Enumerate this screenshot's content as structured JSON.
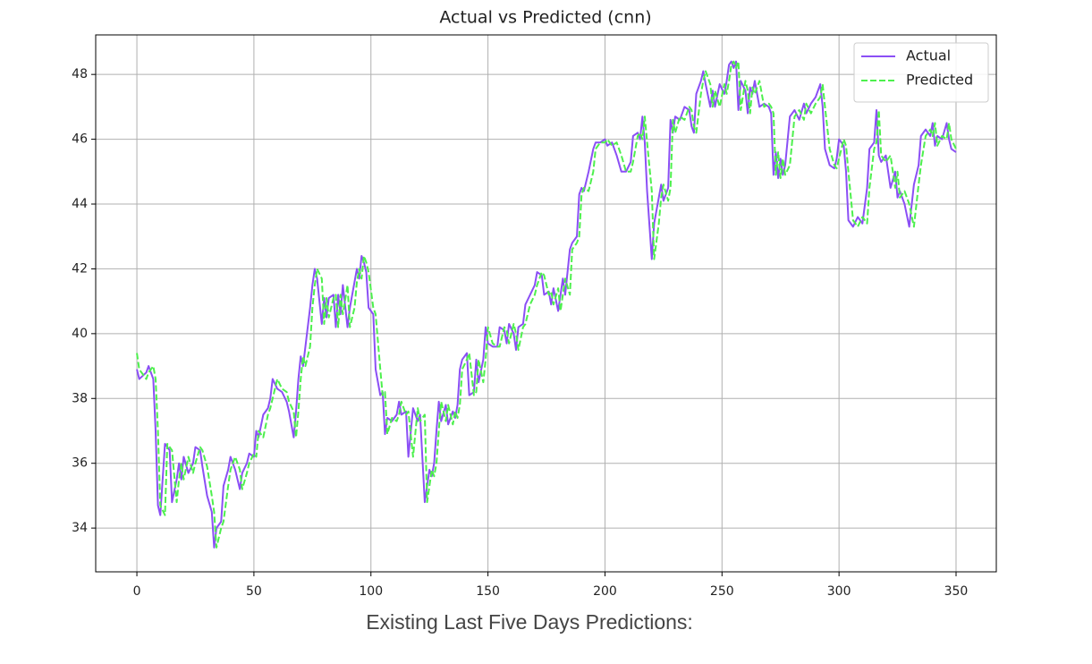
{
  "chart_data": {
    "type": "line",
    "title": "Actual vs Predicted (cnn)",
    "caption": "Existing Last Five Days Predictions:",
    "x": [
      0,
      1,
      4,
      5,
      7,
      8,
      9,
      10,
      12,
      13,
      14,
      15,
      17,
      18,
      19,
      20,
      22,
      24,
      25,
      27,
      28,
      30,
      32,
      33,
      34,
      36,
      37,
      39,
      40,
      42,
      44,
      45,
      47,
      48,
      50,
      51,
      52,
      54,
      56,
      57,
      58,
      60,
      62,
      64,
      65,
      67,
      68,
      69,
      70,
      71,
      72,
      74,
      75,
      76,
      77,
      79,
      80,
      81,
      82,
      84,
      85,
      86,
      87,
      88,
      90,
      91,
      93,
      94,
      95,
      96,
      97,
      98,
      99,
      101,
      102,
      104,
      105,
      106,
      107,
      109,
      111,
      112,
      113,
      115,
      116,
      118,
      120,
      121,
      123,
      124,
      125,
      126,
      127,
      128,
      129,
      130,
      132,
      133,
      135,
      136,
      137,
      138,
      139,
      141,
      142,
      144,
      145,
      146,
      148,
      149,
      150,
      152,
      154,
      155,
      157,
      158,
      159,
      161,
      162,
      163,
      165,
      166,
      168,
      170,
      171,
      173,
      174,
      176,
      177,
      178,
      180,
      181,
      182,
      183,
      185,
      186,
      188,
      189,
      190,
      191,
      193,
      195,
      196,
      198,
      200,
      201,
      203,
      205,
      207,
      209,
      211,
      212,
      214,
      215,
      216,
      217,
      218,
      220,
      221,
      223,
      224,
      225,
      227,
      228,
      229,
      230,
      232,
      234,
      236,
      237,
      238,
      239,
      241,
      242,
      243,
      245,
      246,
      247,
      249,
      251,
      252,
      253,
      254,
      255,
      256,
      257,
      258,
      260,
      261,
      262,
      263,
      264,
      266,
      268,
      270,
      271,
      272,
      273,
      274,
      275,
      276,
      277,
      279,
      281,
      283,
      285,
      286,
      288,
      290,
      292,
      293,
      294,
      296,
      298,
      299,
      300,
      302,
      303,
      304,
      306,
      308,
      310,
      312,
      313,
      315,
      316,
      317,
      318,
      320,
      322,
      324,
      325,
      326,
      328,
      330,
      332,
      334,
      335,
      337,
      339,
      340,
      341,
      342,
      344,
      346,
      347,
      348,
      350
    ],
    "series": [
      {
        "name": "Actual",
        "color": "#8b4ff5",
        "dashed": false,
        "values": [
          38.9,
          38.6,
          38.8,
          39.0,
          38.6,
          37.0,
          34.7,
          34.4,
          36.6,
          36.5,
          36.4,
          34.8,
          35.5,
          36.0,
          35.5,
          36.2,
          35.7,
          36.0,
          36.5,
          36.4,
          35.9,
          35.0,
          34.5,
          33.4,
          34.0,
          34.2,
          35.3,
          35.8,
          36.2,
          35.8,
          35.2,
          35.7,
          36.0,
          36.3,
          36.2,
          37.0,
          36.8,
          37.5,
          37.7,
          38.0,
          38.6,
          38.3,
          38.2,
          37.9,
          37.6,
          36.8,
          37.6,
          38.6,
          39.3,
          39.0,
          39.6,
          40.8,
          41.5,
          42.0,
          41.7,
          40.3,
          41.1,
          40.5,
          41.1,
          41.2,
          40.2,
          41.2,
          40.6,
          41.5,
          40.2,
          40.8,
          41.6,
          42.0,
          41.7,
          42.4,
          42.2,
          41.9,
          40.8,
          40.6,
          38.9,
          38.1,
          38.2,
          36.9,
          37.4,
          37.3,
          37.5,
          37.9,
          37.5,
          37.6,
          36.2,
          37.7,
          37.3,
          37.5,
          34.8,
          35.3,
          35.8,
          35.6,
          36.0,
          37.0,
          37.9,
          37.3,
          37.8,
          37.2,
          37.6,
          37.4,
          37.8,
          38.9,
          39.2,
          39.4,
          38.1,
          38.2,
          39.2,
          38.5,
          39.2,
          40.2,
          39.7,
          39.6,
          39.6,
          40.2,
          40.1,
          39.7,
          40.3,
          40.0,
          39.5,
          40.2,
          40.3,
          40.9,
          41.2,
          41.5,
          41.9,
          41.8,
          41.2,
          41.3,
          40.9,
          41.4,
          40.7,
          41.2,
          41.7,
          41.2,
          42.6,
          42.8,
          43.0,
          44.3,
          44.5,
          44.4,
          45.0,
          45.7,
          45.9,
          45.9,
          46.0,
          45.8,
          45.9,
          45.5,
          45.0,
          45.0,
          45.3,
          46.1,
          46.2,
          46.0,
          46.7,
          45.9,
          44.4,
          42.3,
          43.4,
          44.2,
          44.6,
          44.1,
          44.5,
          46.6,
          46.2,
          46.7,
          46.6,
          47.0,
          46.9,
          46.4,
          46.2,
          47.4,
          47.8,
          48.1,
          47.7,
          47.0,
          47.5,
          47.0,
          47.7,
          47.4,
          47.8,
          48.3,
          48.4,
          48.2,
          48.4,
          46.9,
          47.8,
          47.5,
          46.8,
          47.6,
          47.4,
          47.8,
          47.0,
          47.1,
          47.0,
          46.8,
          44.9,
          45.6,
          44.8,
          45.4,
          44.9,
          45.2,
          46.7,
          46.9,
          46.6,
          47.1,
          46.8,
          47.1,
          47.3,
          47.7,
          47.0,
          45.7,
          45.2,
          45.1,
          45.4,
          46.0,
          45.8,
          45.0,
          43.5,
          43.3,
          43.6,
          43.4,
          44.5,
          45.7,
          45.9,
          46.9,
          45.5,
          45.3,
          45.5,
          44.5,
          45.0,
          44.2,
          44.4,
          44.0,
          43.3,
          44.6,
          45.2,
          46.1,
          46.3,
          46.1,
          46.5,
          45.8,
          46.1,
          46.0,
          46.5,
          46.0,
          45.7,
          45.6
        ]
      },
      {
        "name": "Predicted",
        "color": "#4df04d",
        "dashed": true,
        "values": [
          39.4,
          38.9,
          38.6,
          38.8,
          39.0,
          38.6,
          37.0,
          34.7,
          34.4,
          36.6,
          36.5,
          36.4,
          34.8,
          35.5,
          36.0,
          35.5,
          36.2,
          35.7,
          36.0,
          36.5,
          36.4,
          35.9,
          35.0,
          34.5,
          33.4,
          34.0,
          34.2,
          35.3,
          35.8,
          36.2,
          35.8,
          35.2,
          35.7,
          36.0,
          36.3,
          36.2,
          37.0,
          36.8,
          37.5,
          37.7,
          38.0,
          38.6,
          38.3,
          38.2,
          37.9,
          37.6,
          36.8,
          37.6,
          38.6,
          39.3,
          39.0,
          39.6,
          40.8,
          41.5,
          42.0,
          41.7,
          40.3,
          41.1,
          40.5,
          41.1,
          41.2,
          40.2,
          41.2,
          40.6,
          41.5,
          40.2,
          40.8,
          41.6,
          42.0,
          41.7,
          42.4,
          42.2,
          41.9,
          40.8,
          40.6,
          38.9,
          38.1,
          38.2,
          36.9,
          37.4,
          37.3,
          37.5,
          37.9,
          37.5,
          37.6,
          36.2,
          37.7,
          37.3,
          37.5,
          34.8,
          35.3,
          35.8,
          35.6,
          36.0,
          37.0,
          37.9,
          37.3,
          37.8,
          37.2,
          37.6,
          37.4,
          37.8,
          38.9,
          39.2,
          39.4,
          38.1,
          38.2,
          39.2,
          38.5,
          39.2,
          40.2,
          39.7,
          39.6,
          39.6,
          40.2,
          40.1,
          39.7,
          40.3,
          40.0,
          39.5,
          40.2,
          40.3,
          40.9,
          41.2,
          41.5,
          41.9,
          41.8,
          41.2,
          41.3,
          40.9,
          41.4,
          40.7,
          41.2,
          41.7,
          41.2,
          42.6,
          42.8,
          43.0,
          44.3,
          44.5,
          44.4,
          45.0,
          45.7,
          45.9,
          45.9,
          46.0,
          45.8,
          45.9,
          45.5,
          45.0,
          45.0,
          45.3,
          46.1,
          46.2,
          46.0,
          46.7,
          45.9,
          44.4,
          42.3,
          43.4,
          44.2,
          44.6,
          44.1,
          44.5,
          46.6,
          46.2,
          46.7,
          46.6,
          47.0,
          46.9,
          46.4,
          46.2,
          47.4,
          47.8,
          48.1,
          47.7,
          47.0,
          47.5,
          47.0,
          47.7,
          47.4,
          47.8,
          48.3,
          48.4,
          48.2,
          48.4,
          46.9,
          47.8,
          47.5,
          46.8,
          47.6,
          47.4,
          47.8,
          47.0,
          47.1,
          47.0,
          46.8,
          44.9,
          45.6,
          44.8,
          45.4,
          44.9,
          45.2,
          46.7,
          46.9,
          46.6,
          47.1,
          46.8,
          47.1,
          47.3,
          47.7,
          47.0,
          45.7,
          45.2,
          45.1,
          45.4,
          46.0,
          45.8,
          45.0,
          43.5,
          43.3,
          43.6,
          43.4,
          44.5,
          45.7,
          45.9,
          46.9,
          45.5,
          45.3,
          45.5,
          44.5,
          45.0,
          44.2,
          44.4,
          44.0,
          43.3,
          44.6,
          45.2,
          46.1,
          46.3,
          46.1,
          46.5,
          45.8,
          46.1,
          46.0,
          46.5,
          46.0,
          45.7
        ]
      }
    ],
    "xlim": [
      -17.6,
      367.2
    ],
    "ylim": [
      32.65,
      49.22
    ],
    "xticks": [
      0,
      50,
      100,
      150,
      200,
      250,
      300,
      350
    ],
    "yticks": [
      34,
      36,
      38,
      40,
      42,
      44,
      46,
      48
    ],
    "grid": true,
    "legend": "upper right"
  }
}
